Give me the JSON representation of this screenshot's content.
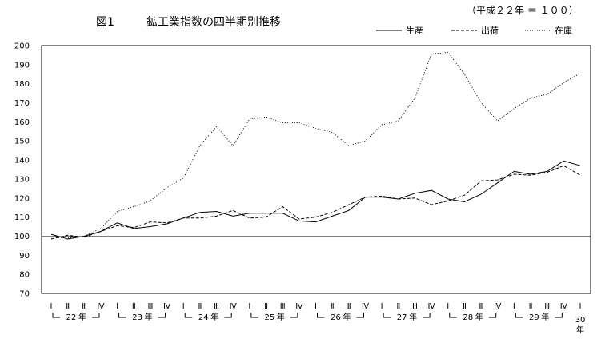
{
  "chart_data": {
    "type": "line",
    "figure_label": "図1",
    "title": "鉱工業指数の四半期別推移",
    "note": "（平成２２年 ＝ １００）",
    "xlabel": "",
    "ylabel": "",
    "ylim": [
      70,
      200
    ],
    "yticks": [
      "200",
      "190",
      "180",
      "170",
      "160",
      "150",
      "140",
      "130",
      "120",
      "110",
      "100",
      "90",
      "80",
      "70"
    ],
    "baseline": 100,
    "grid": false,
    "legend_position": "top-right",
    "quarter_labels": [
      "Ⅰ",
      "Ⅱ",
      "Ⅲ",
      "Ⅳ",
      "Ⅰ",
      "Ⅱ",
      "Ⅲ",
      "Ⅳ",
      "Ⅰ",
      "Ⅱ",
      "Ⅲ",
      "Ⅳ",
      "Ⅰ",
      "Ⅱ",
      "Ⅲ",
      "Ⅳ",
      "Ⅰ",
      "Ⅱ",
      "Ⅲ",
      "Ⅳ",
      "Ⅰ",
      "Ⅱ",
      "Ⅲ",
      "Ⅳ",
      "Ⅰ",
      "Ⅱ",
      "Ⅲ",
      "Ⅳ",
      "Ⅰ",
      "Ⅱ",
      "Ⅲ",
      "Ⅳ",
      "Ⅰ"
    ],
    "year_groups": [
      {
        "label": "22",
        "start": 0,
        "end": 3
      },
      {
        "label": "23",
        "start": 4,
        "end": 7
      },
      {
        "label": "24",
        "start": 8,
        "end": 11
      },
      {
        "label": "25",
        "start": 12,
        "end": 15
      },
      {
        "label": "26",
        "start": 16,
        "end": 19
      },
      {
        "label": "27",
        "start": 20,
        "end": 23
      },
      {
        "label": "28",
        "start": 24,
        "end": 27
      },
      {
        "label": "29",
        "start": 28,
        "end": 31
      }
    ],
    "year_suffix": "年",
    "last_year_label": "30",
    "series": [
      {
        "name": "生産",
        "style": "solid",
        "values": [
          101,
          98.5,
          100,
          102.5,
          107,
          104,
          105,
          106.5,
          109.5,
          112.5,
          113,
          110.5,
          112,
          112,
          112,
          108,
          107.5,
          110.5,
          113.5,
          120.5,
          120.5,
          119.5,
          122.5,
          124,
          119.5,
          118,
          122,
          128,
          134,
          132.5,
          134,
          139.5,
          137
        ]
      },
      {
        "name": "出荷",
        "style": "dashed",
        "values": [
          98.5,
          100.5,
          99.5,
          102.5,
          105.5,
          104.5,
          107.5,
          107,
          109.5,
          109.5,
          110.5,
          113.5,
          109.5,
          110,
          115.5,
          109,
          110,
          112.5,
          116.5,
          120.5,
          121,
          119.5,
          120,
          116.5,
          118.5,
          121.5,
          129,
          129.5,
          132.5,
          132,
          133.5,
          137,
          132
        ]
      },
      {
        "name": "在庫",
        "style": "dotted",
        "values": [
          99.5,
          99,
          100,
          104,
          113,
          115.5,
          118.5,
          125.5,
          130.5,
          147.5,
          157.5,
          147.5,
          161.5,
          162.5,
          159.5,
          159.5,
          156.5,
          154.5,
          147.5,
          150,
          158.5,
          160.5,
          172.5,
          195.5,
          196.5,
          185,
          170,
          160.5,
          167,
          172.5,
          174.5,
          180.5,
          185.5
        ]
      }
    ]
  }
}
